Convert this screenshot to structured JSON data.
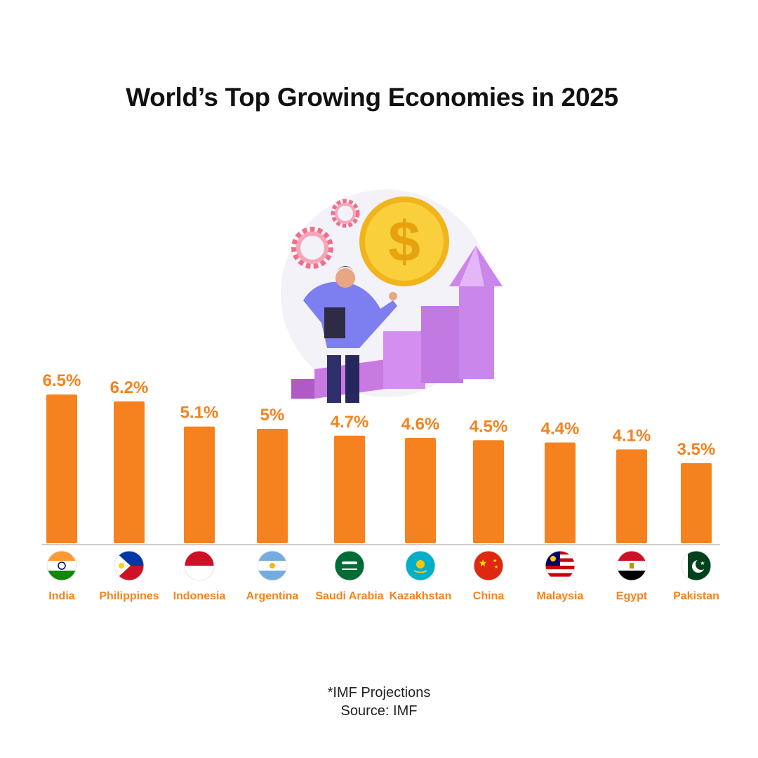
{
  "title": "World’s Top Growing Economies in 2025",
  "footnote": "*IMF Projections",
  "source": "Source: IMF",
  "colors": {
    "bar": "#f5821f",
    "label": "#f5821f",
    "baseline": "#cccccc"
  },
  "chart_data": {
    "type": "bar",
    "title": "World’s Top Growing Economies in 2025",
    "categories": [
      "India",
      "Philippines",
      "Indonesia",
      "Argentina",
      "Saudi Arabia",
      "Kazakhstan",
      "China",
      "Malaysia",
      "Egypt",
      "Pakistan"
    ],
    "values": [
      6.5,
      6.2,
      5.1,
      5,
      4.7,
      4.6,
      4.5,
      4.4,
      4.1,
      3.5
    ],
    "value_labels": [
      "6.5%",
      "6.2%",
      "5.1%",
      "5%",
      "4.7%",
      "4.6%",
      "4.5%",
      "4.4%",
      "4.1%",
      "3.5%"
    ],
    "flag_icons": [
      "india-flag-icon",
      "philippines-flag-icon",
      "indonesia-flag-icon",
      "argentina-flag-icon",
      "saudi-arabia-flag-icon",
      "kazakhstan-flag-icon",
      "china-flag-icon",
      "malaysia-flag-icon",
      "egypt-flag-icon",
      "pakistan-flag-icon"
    ],
    "xlabel": "",
    "ylabel": "",
    "grid": false,
    "legend": "none"
  }
}
